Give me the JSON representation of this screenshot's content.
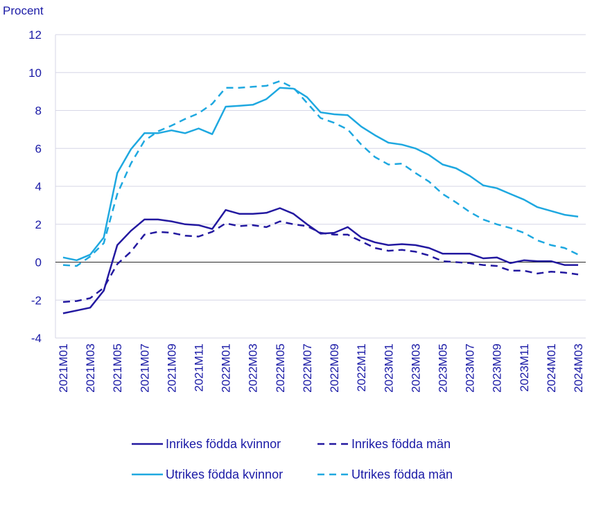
{
  "chart_data": {
    "type": "line",
    "title": "",
    "xlabel": "",
    "ylabel": "Procent",
    "ylim": [
      -4,
      12
    ],
    "yticks": [
      "12",
      "10",
      "8",
      "6",
      "4",
      "2",
      "0",
      "-2",
      "-4"
    ],
    "grid": true,
    "legend_position": "bottom",
    "x_tick_labels": [
      "2021M01",
      "2021M03",
      "2021M05",
      "2021M07",
      "2021M09",
      "2021M11",
      "2022M01",
      "2022M03",
      "2022M05",
      "2022M07",
      "2022M09",
      "2022M11",
      "2023M01",
      "2023M03",
      "2023M05",
      "2023M07",
      "2023M09",
      "2023M11",
      "2024M01",
      "2024M03"
    ],
    "x": [
      "2021M01",
      "2021M02",
      "2021M03",
      "2021M04",
      "2021M05",
      "2021M06",
      "2021M07",
      "2021M08",
      "2021M09",
      "2021M10",
      "2021M11",
      "2021M12",
      "2022M01",
      "2022M02",
      "2022M03",
      "2022M04",
      "2022M05",
      "2022M06",
      "2022M07",
      "2022M08",
      "2022M09",
      "2022M10",
      "2022M11",
      "2022M12",
      "2023M01",
      "2023M02",
      "2023M03",
      "2023M04",
      "2023M05",
      "2023M06",
      "2023M07",
      "2023M08",
      "2023M09",
      "2023M10",
      "2023M11",
      "2023M12",
      "2024M01",
      "2024M02",
      "2024M03"
    ],
    "series": [
      {
        "name": "Inrikes födda kvinnor",
        "color": "#2319a0",
        "dash": "solid",
        "values": [
          -2.7,
          -2.55,
          -2.4,
          -1.5,
          0.9,
          1.65,
          2.25,
          2.25,
          2.15,
          2.0,
          1.95,
          1.75,
          2.75,
          2.55,
          2.55,
          2.6,
          2.85,
          2.55,
          2.0,
          1.5,
          1.55,
          1.85,
          1.3,
          1.05,
          0.9,
          0.95,
          0.9,
          0.75,
          0.45,
          0.45,
          0.45,
          0.2,
          0.25,
          -0.05,
          0.1,
          0.05,
          0.05,
          -0.15,
          -0.15
        ]
      },
      {
        "name": "Inrikes födda män",
        "color": "#2319a0",
        "dash": "dashed",
        "values": [
          -2.1,
          -2.05,
          -1.9,
          -1.35,
          -0.1,
          0.55,
          1.45,
          1.6,
          1.55,
          1.4,
          1.35,
          1.6,
          2.05,
          1.9,
          1.95,
          1.85,
          2.15,
          2.0,
          1.9,
          1.55,
          1.45,
          1.45,
          1.1,
          0.75,
          0.6,
          0.65,
          0.55,
          0.35,
          0.05,
          0.0,
          -0.05,
          -0.15,
          -0.2,
          -0.45,
          -0.45,
          -0.6,
          -0.5,
          -0.55,
          -0.65
        ]
      },
      {
        "name": "Utrikes födda kvinnor",
        "color": "#1ea8e0",
        "dash": "solid",
        "values": [
          0.25,
          0.1,
          0.4,
          1.3,
          4.7,
          5.95,
          6.8,
          6.8,
          6.95,
          6.8,
          7.05,
          6.75,
          8.2,
          8.25,
          8.3,
          8.6,
          9.2,
          9.15,
          8.7,
          7.9,
          7.8,
          7.75,
          7.15,
          6.7,
          6.3,
          6.2,
          6.0,
          5.65,
          5.15,
          4.95,
          4.55,
          4.05,
          3.9,
          3.6,
          3.3,
          2.9,
          2.7,
          2.5,
          2.4
        ]
      },
      {
        "name": "Utrikes födda män",
        "color": "#1ea8e0",
        "dash": "dashed",
        "values": [
          -0.15,
          -0.2,
          0.3,
          1.0,
          3.6,
          5.2,
          6.4,
          6.9,
          7.2,
          7.55,
          7.85,
          8.35,
          9.2,
          9.2,
          9.25,
          9.3,
          9.55,
          9.2,
          8.4,
          7.6,
          7.35,
          7.0,
          6.2,
          5.55,
          5.15,
          5.2,
          4.7,
          4.25,
          3.6,
          3.15,
          2.65,
          2.25,
          2.0,
          1.8,
          1.55,
          1.15,
          0.9,
          0.75,
          0.4
        ]
      }
    ]
  }
}
